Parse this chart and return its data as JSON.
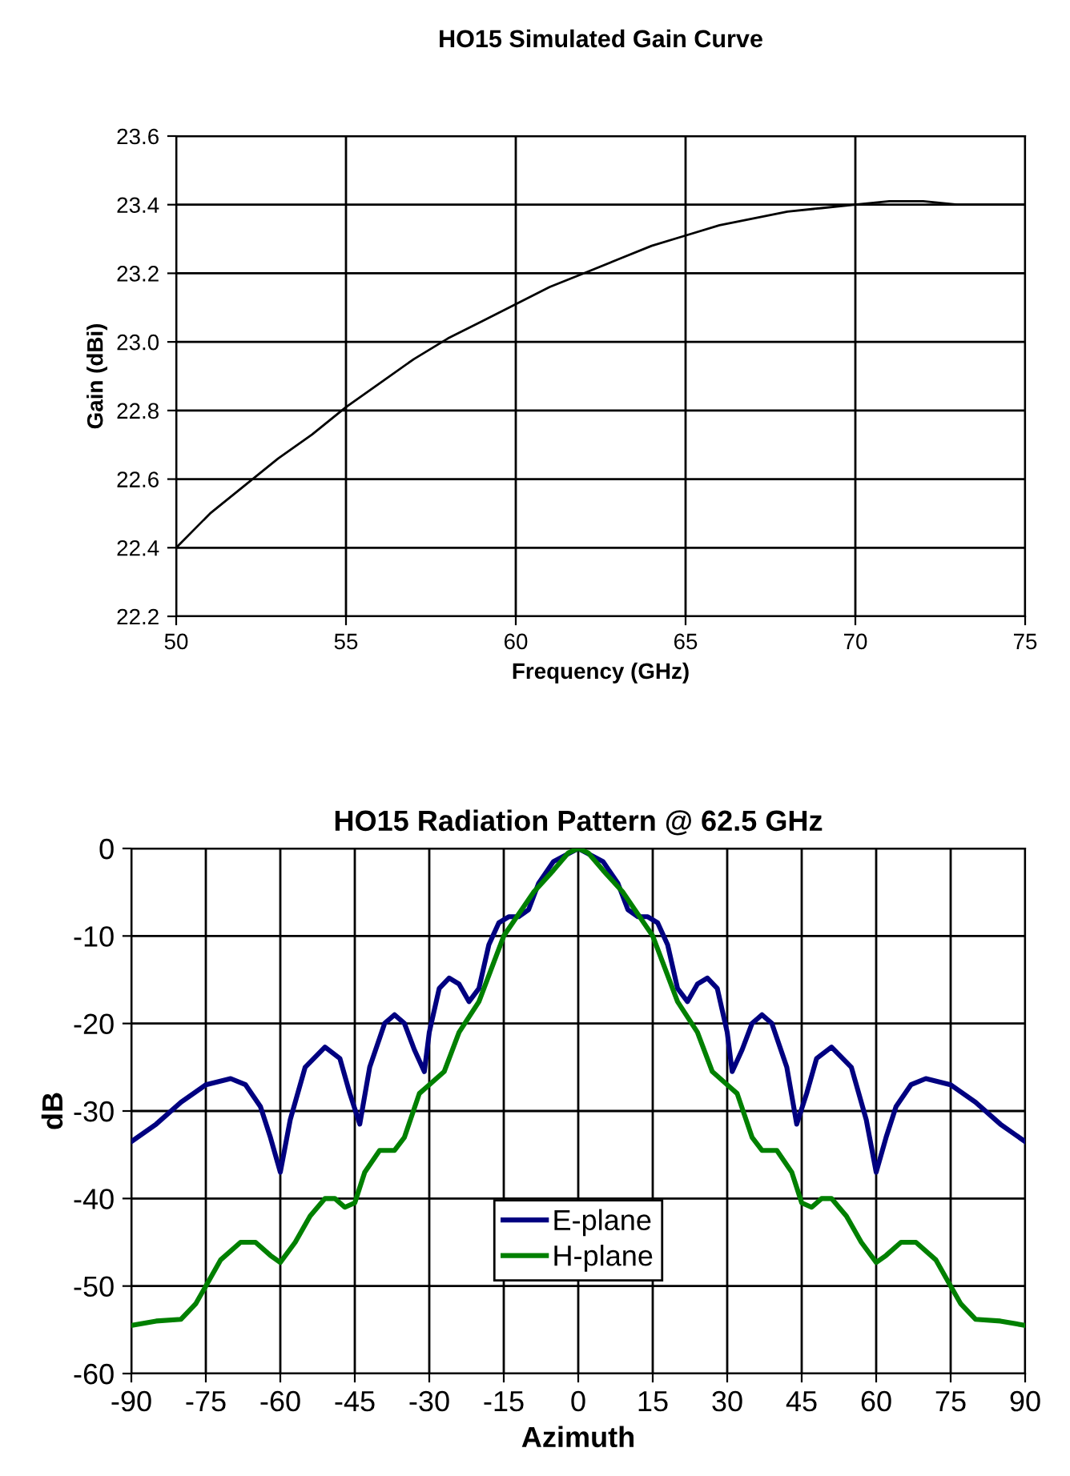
{
  "chart_data": [
    {
      "type": "line",
      "title": "HO15 Simulated Gain Curve",
      "xlabel": "Frequency (GHz)",
      "ylabel": "Gain (dBi)",
      "x": [
        50,
        51,
        52,
        53,
        54,
        55,
        56,
        57,
        58,
        59,
        60,
        61,
        62,
        63,
        64,
        65,
        66,
        67,
        68,
        69,
        70,
        71,
        72,
        73,
        74,
        75
      ],
      "series": [
        {
          "color": "#000000",
          "values": [
            22.4,
            22.5,
            22.58,
            22.66,
            22.73,
            22.81,
            22.88,
            22.95,
            23.01,
            23.06,
            23.11,
            23.16,
            23.2,
            23.24,
            23.28,
            23.31,
            23.34,
            23.36,
            23.38,
            23.39,
            23.4,
            23.41,
            23.41,
            23.4,
            23.4,
            23.4
          ]
        }
      ],
      "xlim": [
        50,
        75
      ],
      "xticks": [
        50,
        55,
        60,
        65,
        70,
        75
      ],
      "ylim": [
        22.2,
        23.6
      ],
      "yticks": [
        {
          "value": 22.2,
          "label": "22.2"
        },
        {
          "value": 22.4,
          "label": "22.4"
        },
        {
          "value": 22.6,
          "label": "22.6"
        },
        {
          "value": 22.8,
          "label": "22.8"
        },
        {
          "value": 23.0,
          "label": "23.0"
        },
        {
          "value": 23.2,
          "label": "23.2"
        },
        {
          "value": 23.4,
          "label": "23.4"
        },
        {
          "value": 23.6,
          "label": "23.6"
        }
      ],
      "grid": true,
      "legend": false,
      "line_style": "solid"
    },
    {
      "type": "line",
      "title": "HO15 Radiation Pattern @ 62.5 GHz",
      "xlabel": "Azimuth",
      "ylabel": "dB",
      "series": [
        {
          "name": "E-plane",
          "color": "#000080",
          "x": [
            -90,
            -85,
            -80,
            -75,
            -70,
            -67,
            -64,
            -62,
            -60,
            -58,
            -55,
            -51,
            -48,
            -46,
            -44,
            -42,
            -39,
            -37,
            -35,
            -33,
            -31,
            -30,
            -28,
            -26,
            -24,
            -22,
            -20,
            -18,
            -16,
            -14,
            -12,
            -10,
            -8,
            -5,
            0,
            5,
            8,
            10,
            12,
            14,
            16,
            18,
            20,
            22,
            24,
            26,
            28,
            30,
            31,
            33,
            35,
            37,
            39,
            42,
            44,
            46,
            48,
            51,
            55,
            58,
            60,
            62,
            64,
            67,
            70,
            75,
            80,
            85,
            90
          ],
          "values": [
            -33.5,
            -31.5,
            -29,
            -27,
            -26.3,
            -27,
            -29.5,
            -33,
            -37,
            -31,
            -25,
            -22.7,
            -24,
            -28,
            -31.5,
            -25,
            -20,
            -19,
            -20,
            -23,
            -25.5,
            -21,
            -16,
            -14.8,
            -15.5,
            -17.5,
            -16,
            -11,
            -8.5,
            -7.8,
            -7.8,
            -7,
            -4,
            -1.5,
            0,
            -1.5,
            -4,
            -7,
            -7.8,
            -7.8,
            -8.5,
            -11,
            -16,
            -17.5,
            -15.5,
            -14.8,
            -16,
            -21,
            -25.5,
            -23,
            -20,
            -19,
            -20,
            -25,
            -31.5,
            -28,
            -24,
            -22.7,
            -25,
            -31,
            -37,
            -33,
            -29.5,
            -27,
            -26.3,
            -27,
            -29,
            -31.5,
            -33.5
          ]
        },
        {
          "name": "H-plane",
          "color": "#008000",
          "x": [
            -90,
            -85,
            -80,
            -77,
            -75,
            -72,
            -68,
            -65,
            -62,
            -60,
            -57,
            -54,
            -51,
            -49,
            -47,
            -45,
            -43,
            -40,
            -37,
            -35,
            -32,
            -30,
            -27,
            -24,
            -20,
            -17,
            -15,
            -12,
            -9,
            -5,
            -2,
            0,
            2,
            5,
            9,
            12,
            15,
            17,
            20,
            24,
            27,
            30,
            32,
            35,
            37,
            40,
            43,
            45,
            47,
            49,
            51,
            54,
            57,
            60,
            62,
            65,
            68,
            72,
            75,
            77,
            80,
            85,
            90
          ],
          "values": [
            -54.5,
            -54,
            -53.8,
            -52,
            -50,
            -47,
            -45,
            -45,
            -46.5,
            -47.3,
            -45,
            -42,
            -40,
            -40,
            -41,
            -40.5,
            -37,
            -34.5,
            -34.5,
            -33,
            -28,
            -27,
            -25.5,
            -21,
            -17.5,
            -13,
            -10,
            -7.5,
            -5,
            -2.5,
            -0.5,
            0,
            -0.5,
            -2.5,
            -5,
            -7.5,
            -10,
            -13,
            -17.5,
            -21,
            -25.5,
            -27,
            -28,
            -33,
            -34.5,
            -34.5,
            -37,
            -40.5,
            -41,
            -40,
            -40,
            -42,
            -45,
            -47.3,
            -46.5,
            -45,
            -45,
            -47,
            -50,
            -52,
            -53.8,
            -54,
            -54.5
          ]
        }
      ],
      "xlim": [
        -90,
        90
      ],
      "xticks": [
        -90,
        -75,
        -60,
        -45,
        -30,
        -15,
        0,
        15,
        30,
        45,
        60,
        75,
        90
      ],
      "ylim": [
        -60,
        0
      ],
      "yticks": [
        -60,
        -50,
        -40,
        -30,
        -20,
        -10,
        0
      ],
      "grid": true,
      "legend": "bottom",
      "line_style": "solid"
    }
  ]
}
